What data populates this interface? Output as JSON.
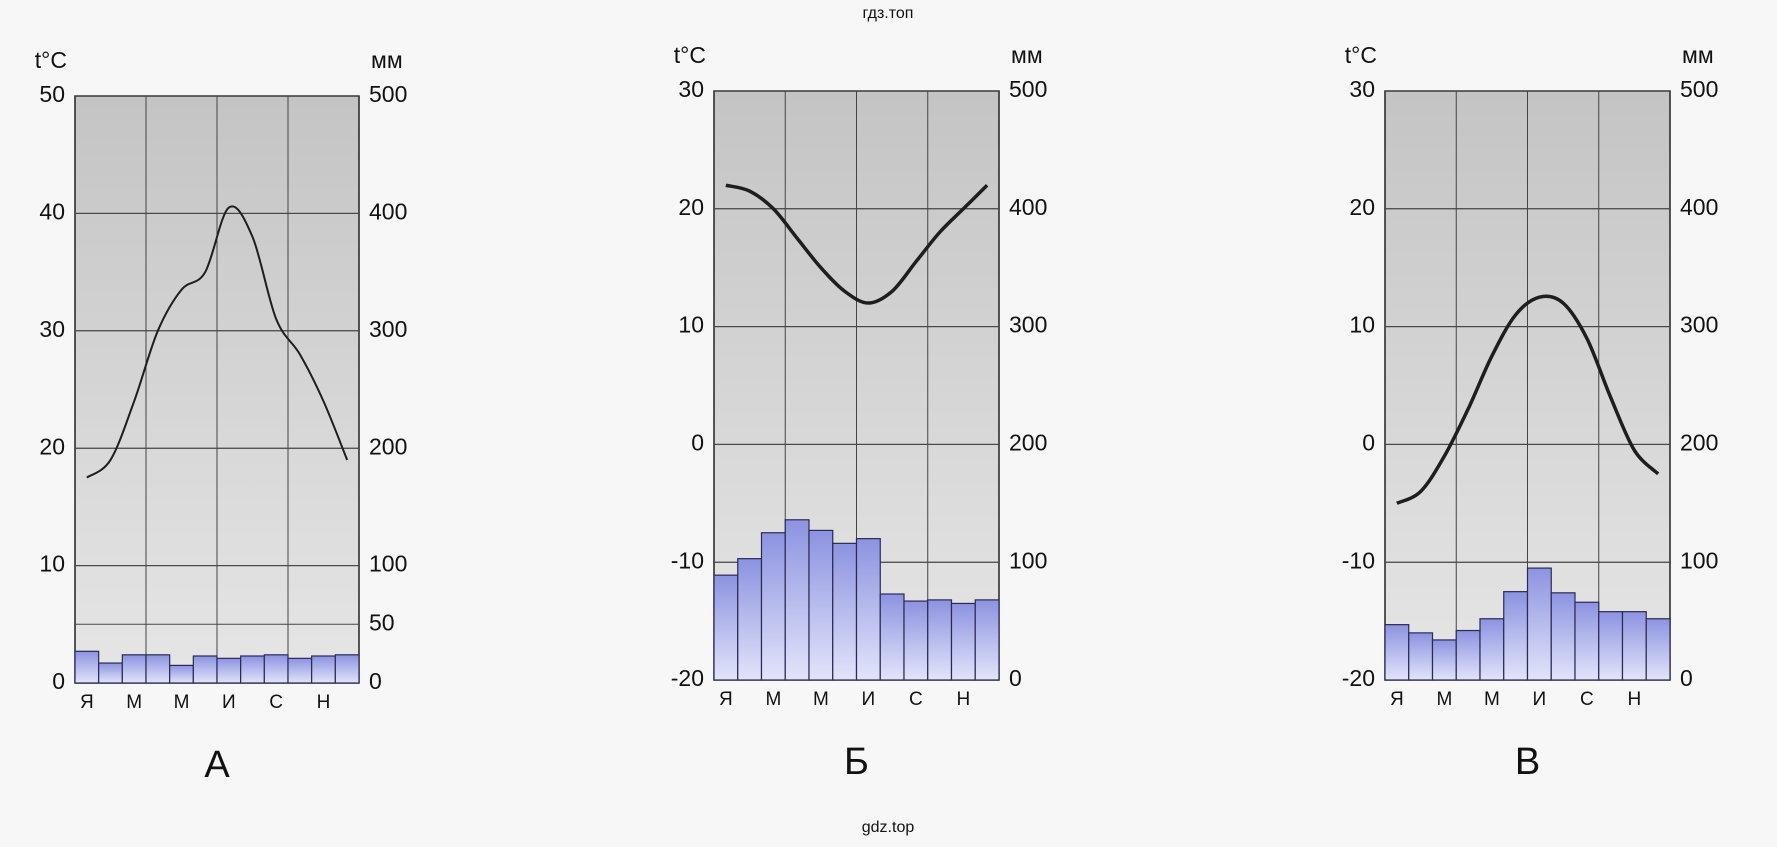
{
  "header": "гдз.топ",
  "footer": "gdz.top",
  "chart_data": [
    {
      "type": "climate",
      "title": "А",
      "y_label": "t°C",
      "y2_label": "мм",
      "categories": [
        "Я",
        null,
        "М",
        null,
        "М",
        null,
        "И",
        null,
        "С",
        null,
        "Н",
        null
      ],
      "ylim": [
        0,
        50
      ],
      "yticks": [
        0,
        10,
        20,
        30,
        40,
        50
      ],
      "y2lim": [
        0,
        500
      ],
      "y2ticks": [
        0,
        50,
        100,
        200,
        300,
        400,
        500
      ],
      "grid": true,
      "series": [
        {
          "kind": "bar",
          "axis": "y2",
          "color": "#8c93e0",
          "values": [
            27,
            17,
            24,
            24,
            15,
            23,
            21,
            23,
            24,
            21,
            23,
            24
          ]
        },
        {
          "kind": "line",
          "color": "#1e1e1e",
          "values": [
            17.5,
            19,
            24,
            30,
            33.5,
            35,
            40.5,
            38,
            31,
            28,
            24,
            19
          ]
        }
      ]
    },
    {
      "type": "climate",
      "title": "Б",
      "y_label": "t°C",
      "y2_label": "мм",
      "categories": [
        "Я",
        null,
        "М",
        null,
        "М",
        null,
        "И",
        null,
        "С",
        null,
        "Н",
        null
      ],
      "ylim": [
        -20,
        30
      ],
      "yticks": [
        -20,
        -10,
        0,
        10,
        20,
        30
      ],
      "y2lim": [
        0,
        500
      ],
      "y2ticks": [
        0,
        100,
        200,
        300,
        400,
        500
      ],
      "grid": true,
      "series": [
        {
          "kind": "bar",
          "axis": "y2",
          "color": "#8c93e0",
          "values": [
            89,
            103,
            125,
            136,
            127,
            116,
            120,
            73,
            67,
            68,
            65,
            68
          ]
        },
        {
          "kind": "line",
          "color": "#1e1e1e",
          "values": [
            22,
            21.5,
            20,
            17.5,
            15,
            13,
            12,
            13,
            15.5,
            18,
            20,
            22
          ]
        }
      ]
    },
    {
      "type": "climate",
      "title": "В",
      "y_label": "t°C",
      "y2_label": "мм",
      "categories": [
        "Я",
        null,
        "М",
        null,
        "М",
        null,
        "И",
        null,
        "С",
        null,
        "Н",
        null
      ],
      "ylim": [
        -20,
        30
      ],
      "yticks": [
        -20,
        -10,
        0,
        10,
        20,
        30
      ],
      "y2lim": [
        0,
        500
      ],
      "y2ticks": [
        0,
        100,
        200,
        300,
        400,
        500
      ],
      "grid": true,
      "series": [
        {
          "kind": "bar",
          "axis": "y2",
          "color": "#8c93e0",
          "values": [
            47,
            40,
            34,
            42,
            52,
            75,
            95,
            74,
            66,
            58,
            58,
            52
          ]
        },
        {
          "kind": "line",
          "color": "#1e1e1e",
          "values": [
            -5,
            -4,
            -1,
            3,
            7.5,
            11,
            12.5,
            12,
            9,
            4,
            -0.5,
            -2.5
          ]
        }
      ]
    }
  ]
}
